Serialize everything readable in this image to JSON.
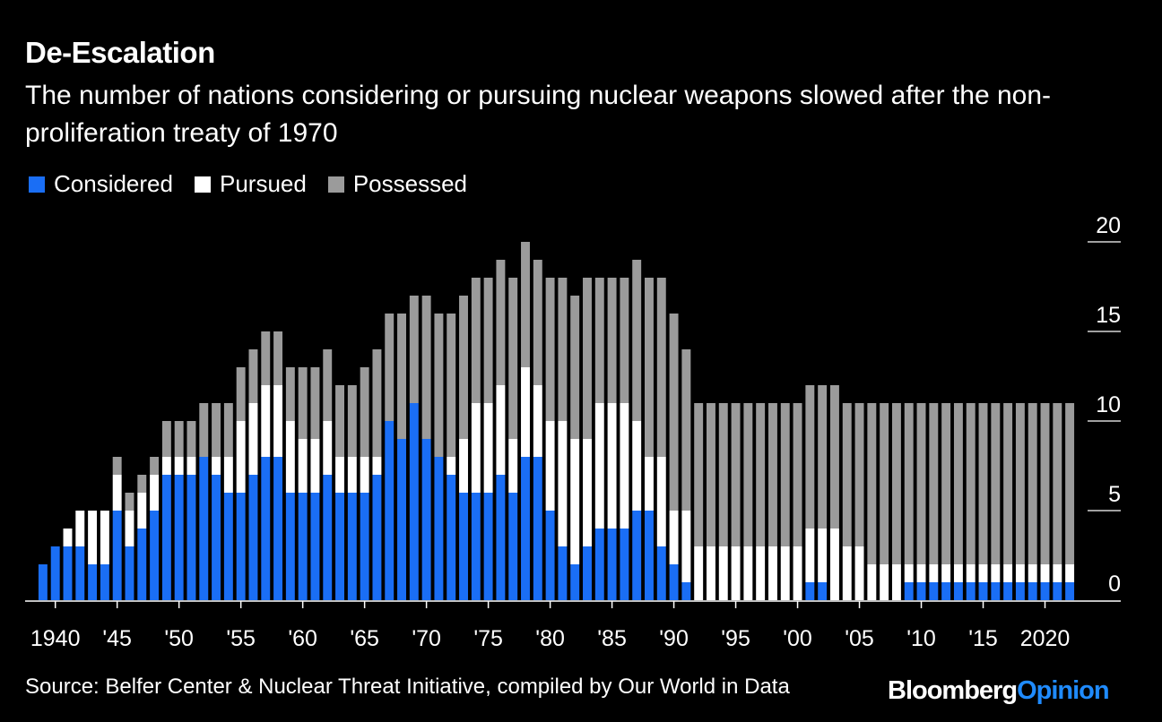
{
  "chart_data": {
    "type": "bar",
    "stacked": true,
    "title": "De-Escalation",
    "subtitle": "The number of nations considering or pursuing nuclear weapons slowed after the non-proliferation treaty of 1970",
    "source": "Source: Belfer Center & Nuclear Threat Initiative, compiled by Our World in Data",
    "xlabel": "",
    "ylabel": "",
    "ylim": [
      0,
      20
    ],
    "yticks": [
      0,
      5,
      10,
      15,
      20
    ],
    "y_axis_side": "right",
    "legend_position": "top-left",
    "grid": false,
    "x_start": 1939,
    "x_end": 2022,
    "x": [
      1939,
      1940,
      1941,
      1942,
      1943,
      1944,
      1945,
      1946,
      1947,
      1948,
      1949,
      1950,
      1951,
      1952,
      1953,
      1954,
      1955,
      1956,
      1957,
      1958,
      1959,
      1960,
      1961,
      1962,
      1963,
      1964,
      1965,
      1966,
      1967,
      1968,
      1969,
      1970,
      1971,
      1972,
      1973,
      1974,
      1975,
      1976,
      1977,
      1978,
      1979,
      1980,
      1981,
      1982,
      1983,
      1984,
      1985,
      1986,
      1987,
      1988,
      1989,
      1990,
      1991,
      1992,
      1993,
      1994,
      1995,
      1996,
      1997,
      1998,
      1999,
      2000,
      2001,
      2002,
      2003,
      2004,
      2005,
      2006,
      2007,
      2008,
      2009,
      2010,
      2011,
      2012,
      2013,
      2014,
      2015,
      2016,
      2017,
      2018,
      2019,
      2020,
      2021,
      2022
    ],
    "xtick_labels": [
      {
        "x": 1940,
        "label": "1940"
      },
      {
        "x": 1945,
        "label": "'45"
      },
      {
        "x": 1950,
        "label": "'50"
      },
      {
        "x": 1955,
        "label": "'55"
      },
      {
        "x": 1960,
        "label": "'60"
      },
      {
        "x": 1965,
        "label": "'65"
      },
      {
        "x": 1970,
        "label": "'70"
      },
      {
        "x": 1975,
        "label": "'75"
      },
      {
        "x": 1980,
        "label": "'80"
      },
      {
        "x": 1985,
        "label": "'85"
      },
      {
        "x": 1990,
        "label": "'90"
      },
      {
        "x": 1995,
        "label": "'95"
      },
      {
        "x": 2000,
        "label": "'00"
      },
      {
        "x": 2005,
        "label": "'05"
      },
      {
        "x": 2010,
        "label": "'10"
      },
      {
        "x": 2015,
        "label": "'15"
      },
      {
        "x": 2020,
        "label": "2020"
      }
    ],
    "series": [
      {
        "name": "Considered",
        "color": "#1a6ef5",
        "values": [
          2,
          3,
          3,
          3,
          2,
          2,
          5,
          3,
          4,
          5,
          7,
          7,
          7,
          8,
          7,
          6,
          6,
          7,
          8,
          8,
          6,
          6,
          6,
          7,
          6,
          6,
          6,
          7,
          10,
          9,
          11,
          9,
          8,
          7,
          6,
          6,
          6,
          7,
          6,
          8,
          8,
          5,
          3,
          2,
          3,
          4,
          4,
          4,
          5,
          5,
          3,
          2,
          1,
          0,
          0,
          0,
          0,
          0,
          0,
          0,
          0,
          0,
          1,
          1,
          0,
          0,
          0,
          0,
          0,
          0,
          1,
          1,
          1,
          1,
          1,
          1,
          1,
          1,
          1,
          1,
          1,
          1,
          1,
          1
        ]
      },
      {
        "name": "Pursued",
        "color": "#ffffff",
        "values": [
          0,
          0,
          1,
          2,
          3,
          3,
          2,
          2,
          2,
          2,
          1,
          1,
          1,
          0,
          1,
          2,
          4,
          4,
          4,
          4,
          4,
          3,
          3,
          3,
          2,
          2,
          2,
          1,
          0,
          0,
          0,
          0,
          0,
          1,
          3,
          5,
          5,
          5,
          3,
          5,
          4,
          5,
          7,
          7,
          6,
          7,
          7,
          7,
          5,
          3,
          5,
          3,
          4,
          3,
          3,
          3,
          3,
          3,
          3,
          3,
          3,
          3,
          3,
          3,
          4,
          3,
          3,
          2,
          2,
          2,
          1,
          1,
          1,
          1,
          1,
          1,
          1,
          1,
          1,
          1,
          1,
          1,
          1,
          1
        ]
      },
      {
        "name": "Possessed",
        "color": "#9b9b9b",
        "values": [
          0,
          0,
          0,
          0,
          0,
          0,
          1,
          1,
          1,
          1,
          2,
          2,
          2,
          3,
          3,
          3,
          3,
          3,
          3,
          3,
          3,
          4,
          4,
          4,
          4,
          4,
          5,
          6,
          6,
          7,
          6,
          8,
          8,
          8,
          8,
          7,
          7,
          7,
          9,
          7,
          7,
          8,
          8,
          8,
          9,
          7,
          7,
          7,
          9,
          10,
          10,
          11,
          9,
          8,
          8,
          8,
          8,
          8,
          8,
          8,
          8,
          8,
          8,
          8,
          8,
          8,
          8,
          9,
          9,
          9,
          9,
          9,
          9,
          9,
          9,
          9,
          9,
          9,
          9,
          9,
          9,
          9,
          9,
          9
        ]
      }
    ]
  },
  "brand": {
    "name": "Bloomberg",
    "suffix": "Opinion"
  }
}
